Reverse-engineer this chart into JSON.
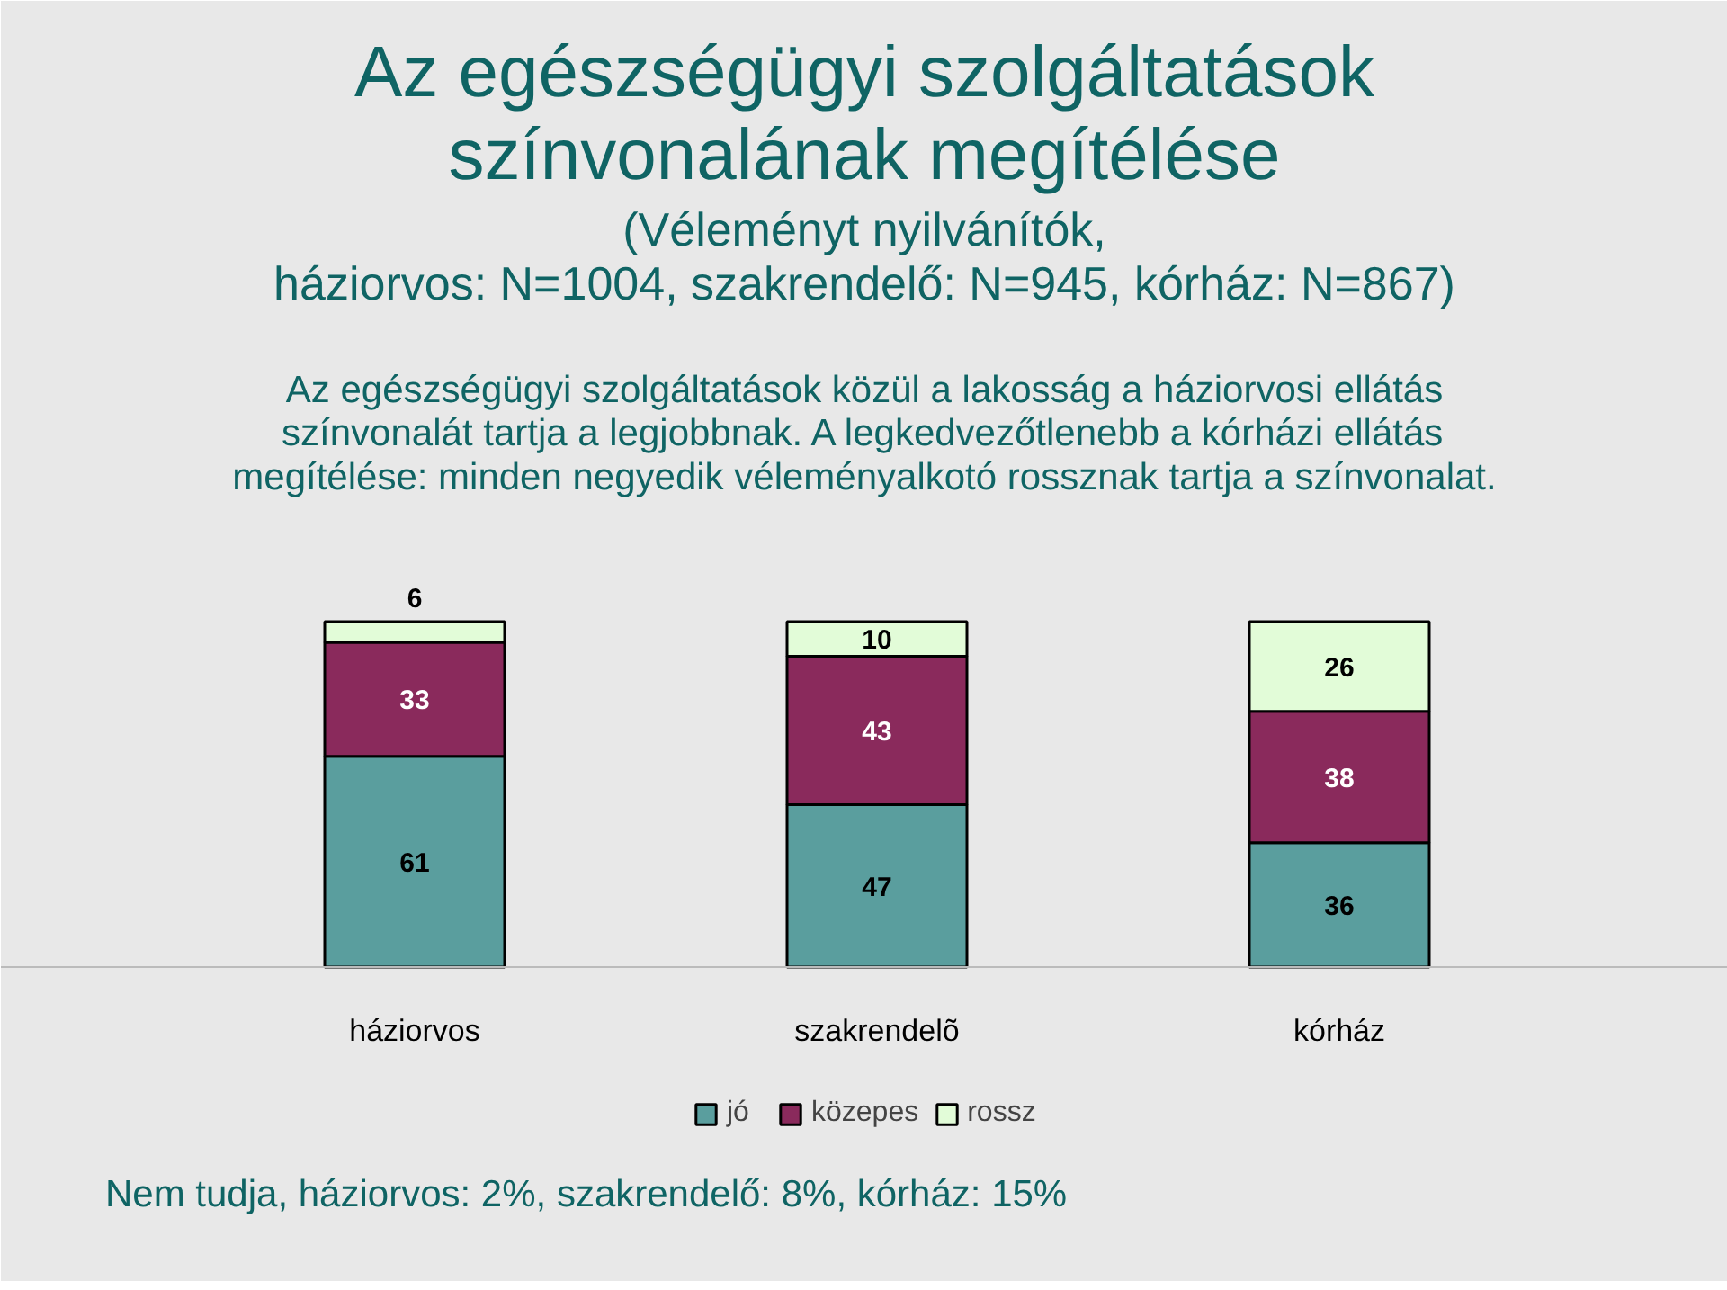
{
  "chart_data": {
    "type": "bar",
    "stacked": true,
    "data_labels": true,
    "legend": "bottom",
    "title": "Az egészségügyi szolgáltatások\nszínvonalának megítélése",
    "subtitle": "(Véleményt nyilvánítók,\nháziorvos: N=1004, szakrendelő: N=945, kórház: N=867)",
    "annotations": [
      "Az egészségügyi szolgáltatások közül a lakosság a háziorvosi ellátás\nszínvonalát tartja a legjobbnak. A legkedvezőtlenebb a kórházi ellátás\nmegítélése: minden negyedik véleményalkotó rossznak tartja a színvonalat.",
      "Nem tudja, háziorvos: 2%, szakrendelő: 8%, kórház: 15%"
    ],
    "categories": [
      "háziorvos",
      "szakrendelõ",
      "kórház"
    ],
    "series": [
      {
        "name": "jó",
        "color": "#5a9e9e",
        "values": [
          61,
          47,
          36
        ]
      },
      {
        "name": "közepes",
        "color": "#8a2a5c",
        "values": [
          33,
          43,
          38
        ]
      },
      {
        "name": "rossz",
        "color": "#e2fcd8",
        "values": [
          6,
          10,
          26
        ]
      }
    ]
  }
}
